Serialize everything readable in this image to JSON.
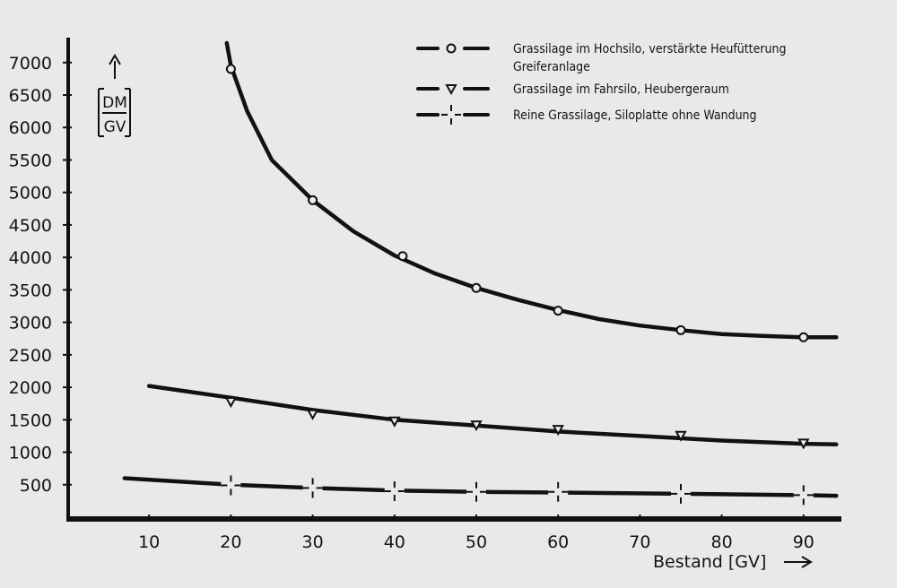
{
  "chart_data": {
    "type": "line",
    "xlabel": "Bestand [GV]",
    "ylabel_top": "DM",
    "ylabel_bottom": "GV",
    "xlim": [
      0,
      95
    ],
    "ylim": [
      0,
      7300
    ],
    "x_ticks": [
      10,
      20,
      30,
      40,
      50,
      60,
      70,
      80,
      90
    ],
    "y_ticks": [
      500,
      1000,
      1500,
      2000,
      2500,
      3000,
      3500,
      4000,
      4500,
      5000,
      5500,
      6000,
      6500,
      7000
    ],
    "grid": false,
    "legend_position": "top-right",
    "series": [
      {
        "name": "Grassilage im Hochsilo, verstärkte Heufütterung",
        "name_line2": "Greiferanlage",
        "marker": "circle",
        "curve_x": [
          19.5,
          20,
          22,
          25,
          30,
          35,
          40,
          45,
          50,
          55,
          60,
          65,
          70,
          75,
          80,
          85,
          90,
          94
        ],
        "curve_y": [
          7300,
          6950,
          6250,
          5500,
          4880,
          4400,
          4030,
          3750,
          3530,
          3350,
          3190,
          3050,
          2950,
          2880,
          2820,
          2790,
          2770,
          2770
        ],
        "points_x": [
          20,
          30,
          41,
          50,
          60,
          75,
          90
        ],
        "points_y": [
          6900,
          4880,
          4020,
          3530,
          3180,
          2880,
          2770
        ]
      },
      {
        "name": "Grassilage im Fahrsilo,  Heubergeraum",
        "marker": "triangle",
        "curve_x": [
          10,
          20,
          30,
          40,
          50,
          60,
          70,
          80,
          90,
          94
        ],
        "curve_y": [
          2020,
          1840,
          1650,
          1500,
          1410,
          1320,
          1250,
          1180,
          1130,
          1120
        ],
        "points_x": [
          20,
          30,
          40,
          50,
          60,
          75,
          90
        ],
        "points_y": [
          1780,
          1590,
          1480,
          1420,
          1350,
          1260,
          1140
        ]
      },
      {
        "name": "Reine Grassilage, Siloplatte ohne Wandung",
        "marker": "cross",
        "curve_x": [
          7,
          20,
          30,
          40,
          50,
          60,
          75,
          90,
          94
        ],
        "curve_y": [
          600,
          500,
          450,
          410,
          390,
          380,
          360,
          340,
          330
        ],
        "points_x": [
          20,
          30,
          40,
          50,
          60,
          75,
          90
        ],
        "points_y": [
          490,
          450,
          400,
          390,
          390,
          360,
          340
        ]
      }
    ]
  }
}
